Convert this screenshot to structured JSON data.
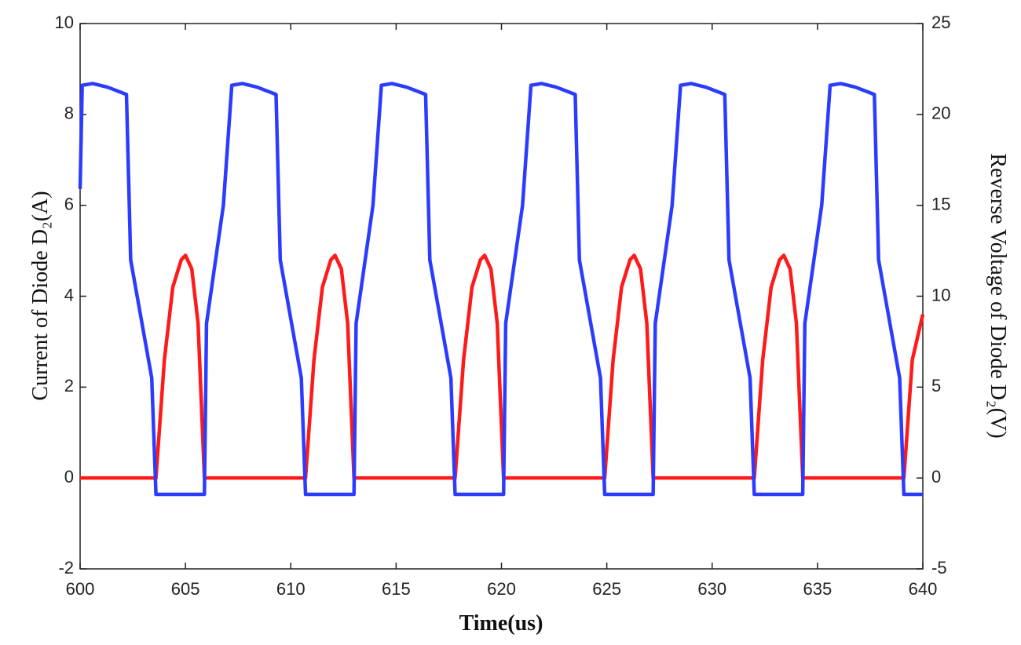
{
  "chart_data": {
    "type": "line",
    "x_label": "Time(us)",
    "y_label": "Current of Diode D₂(A)",
    "y2_label": "Reverse Voltage of Diode D₂(V)",
    "xlim": [
      600,
      640
    ],
    "xticks": [
      600,
      605,
      610,
      615,
      620,
      625,
      630,
      635,
      640
    ],
    "ylim": [
      -2,
      10
    ],
    "yticks": [
      -2,
      0,
      2,
      4,
      6,
      8,
      10
    ],
    "y2lim": [
      -5,
      25
    ],
    "y2ticks": [
      -5,
      0,
      5,
      10,
      15,
      20,
      25
    ],
    "series": [
      {
        "color": "#ff1a1a",
        "axis": "y",
        "x": [
          600,
          603.6,
          604.0,
          604.4,
          604.8,
          605.0,
          605.3,
          605.6,
          605.9,
          610.7,
          611.1,
          611.5,
          611.9,
          612.1,
          612.4,
          612.7,
          613.0,
          617.8,
          618.2,
          618.6,
          619.0,
          619.2,
          619.5,
          619.8,
          620.1,
          624.9,
          625.3,
          625.7,
          626.1,
          626.3,
          626.6,
          626.9,
          627.2,
          632.0,
          632.4,
          632.8,
          633.2,
          633.4,
          633.7,
          634.0,
          634.3,
          639.1,
          639.5,
          640
        ],
        "values": [
          0,
          0,
          2.6,
          4.2,
          4.8,
          4.9,
          4.6,
          3.4,
          0,
          0,
          2.6,
          4.2,
          4.8,
          4.9,
          4.6,
          3.4,
          0,
          0,
          2.6,
          4.2,
          4.8,
          4.9,
          4.6,
          3.4,
          0,
          0,
          2.6,
          4.2,
          4.8,
          4.9,
          4.6,
          3.4,
          0,
          0,
          2.6,
          4.2,
          4.8,
          4.9,
          4.6,
          3.4,
          0,
          0,
          2.6,
          3.6
        ]
      },
      {
        "color": "#2b3cff",
        "axis": "y2",
        "x": [
          600,
          600.1,
          600.6,
          601.3,
          602.2,
          602.4,
          603.4,
          603.6,
          605.9,
          606.0,
          606.8,
          607.2,
          607.7,
          608.4,
          609.3,
          609.5,
          610.5,
          610.7,
          613.0,
          613.1,
          613.9,
          614.3,
          614.8,
          615.5,
          616.4,
          616.6,
          617.6,
          617.8,
          620.1,
          620.2,
          621.0,
          621.4,
          621.9,
          622.6,
          623.5,
          623.7,
          624.7,
          624.9,
          627.2,
          627.3,
          628.1,
          628.5,
          629.0,
          629.7,
          630.6,
          630.8,
          631.8,
          632.0,
          634.3,
          634.4,
          635.2,
          635.6,
          636.1,
          636.8,
          637.7,
          637.9,
          638.9,
          639.1,
          640
        ],
        "values": [
          15.9,
          21.6,
          21.7,
          21.5,
          21.1,
          12,
          5.5,
          -0.9,
          -0.9,
          8.5,
          15,
          21.6,
          21.7,
          21.5,
          21.1,
          12,
          5.5,
          -0.9,
          -0.9,
          8.5,
          15,
          21.6,
          21.7,
          21.5,
          21.1,
          12,
          5.5,
          -0.9,
          -0.9,
          8.5,
          15,
          21.6,
          21.7,
          21.5,
          21.1,
          12,
          5.5,
          -0.9,
          -0.9,
          8.5,
          15,
          21.6,
          21.7,
          21.5,
          21.1,
          12,
          5.5,
          -0.9,
          -0.9,
          8.5,
          15,
          21.6,
          21.7,
          21.5,
          21.1,
          12,
          5.5,
          -0.9,
          -0.9
        ]
      }
    ]
  }
}
